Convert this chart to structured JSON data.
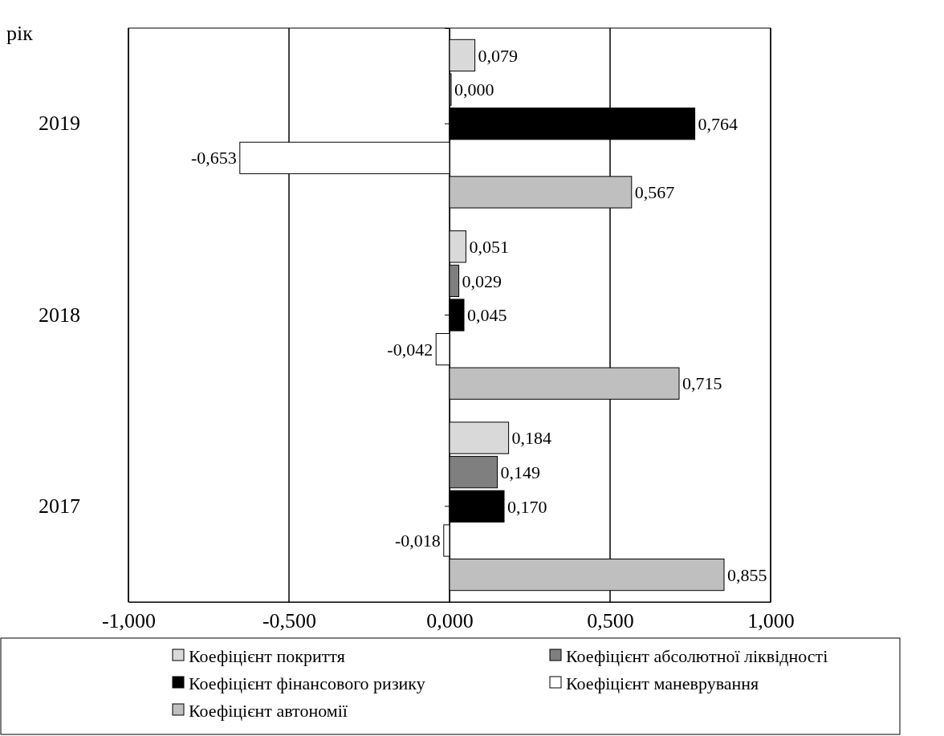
{
  "chart_data": {
    "type": "bar",
    "orientation": "horizontal",
    "ylabel": "рік",
    "categories": [
      "2019",
      "2018",
      "2017"
    ],
    "xlim": [
      -1,
      1
    ],
    "xticks": [
      {
        "value": -1,
        "label": "-1,000"
      },
      {
        "value": -0.5,
        "label": "-0,500"
      },
      {
        "value": 0,
        "label": "0,000"
      },
      {
        "value": 0.5,
        "label": "0,500"
      },
      {
        "value": 1,
        "label": "1,000"
      }
    ],
    "grid": "x",
    "legend": "bottom",
    "series": [
      {
        "name": "Коефіцієнт покриття",
        "color": "#d9d9d9",
        "values": [
          0.079,
          0.051,
          0.184
        ],
        "value_labels": [
          "0,079",
          "0,051",
          "0,184"
        ]
      },
      {
        "name": "Коефіцієнт абсолютної ліквідності",
        "color": "#7f7f7f",
        "values": [
          0.0,
          0.029,
          0.149
        ],
        "value_labels": [
          "0,000",
          "0,029",
          "0,149"
        ]
      },
      {
        "name": "Коефіцієнт фінансового ризику",
        "color": "#000000",
        "values": [
          0.764,
          0.045,
          0.17
        ],
        "value_labels": [
          "0,764",
          "0,045",
          "0,170"
        ]
      },
      {
        "name": "Коефіцієнт маневрування",
        "color": "#ffffff",
        "values": [
          -0.653,
          -0.042,
          -0.018
        ],
        "value_labels": [
          "-0,653",
          "-0,042",
          "-0,018"
        ]
      },
      {
        "name": "Коефіцієнт автономії",
        "color": "#bfbfbf",
        "values": [
          0.567,
          0.715,
          0.855
        ],
        "value_labels": [
          "0,567",
          "0,715",
          "0,855"
        ]
      }
    ]
  }
}
